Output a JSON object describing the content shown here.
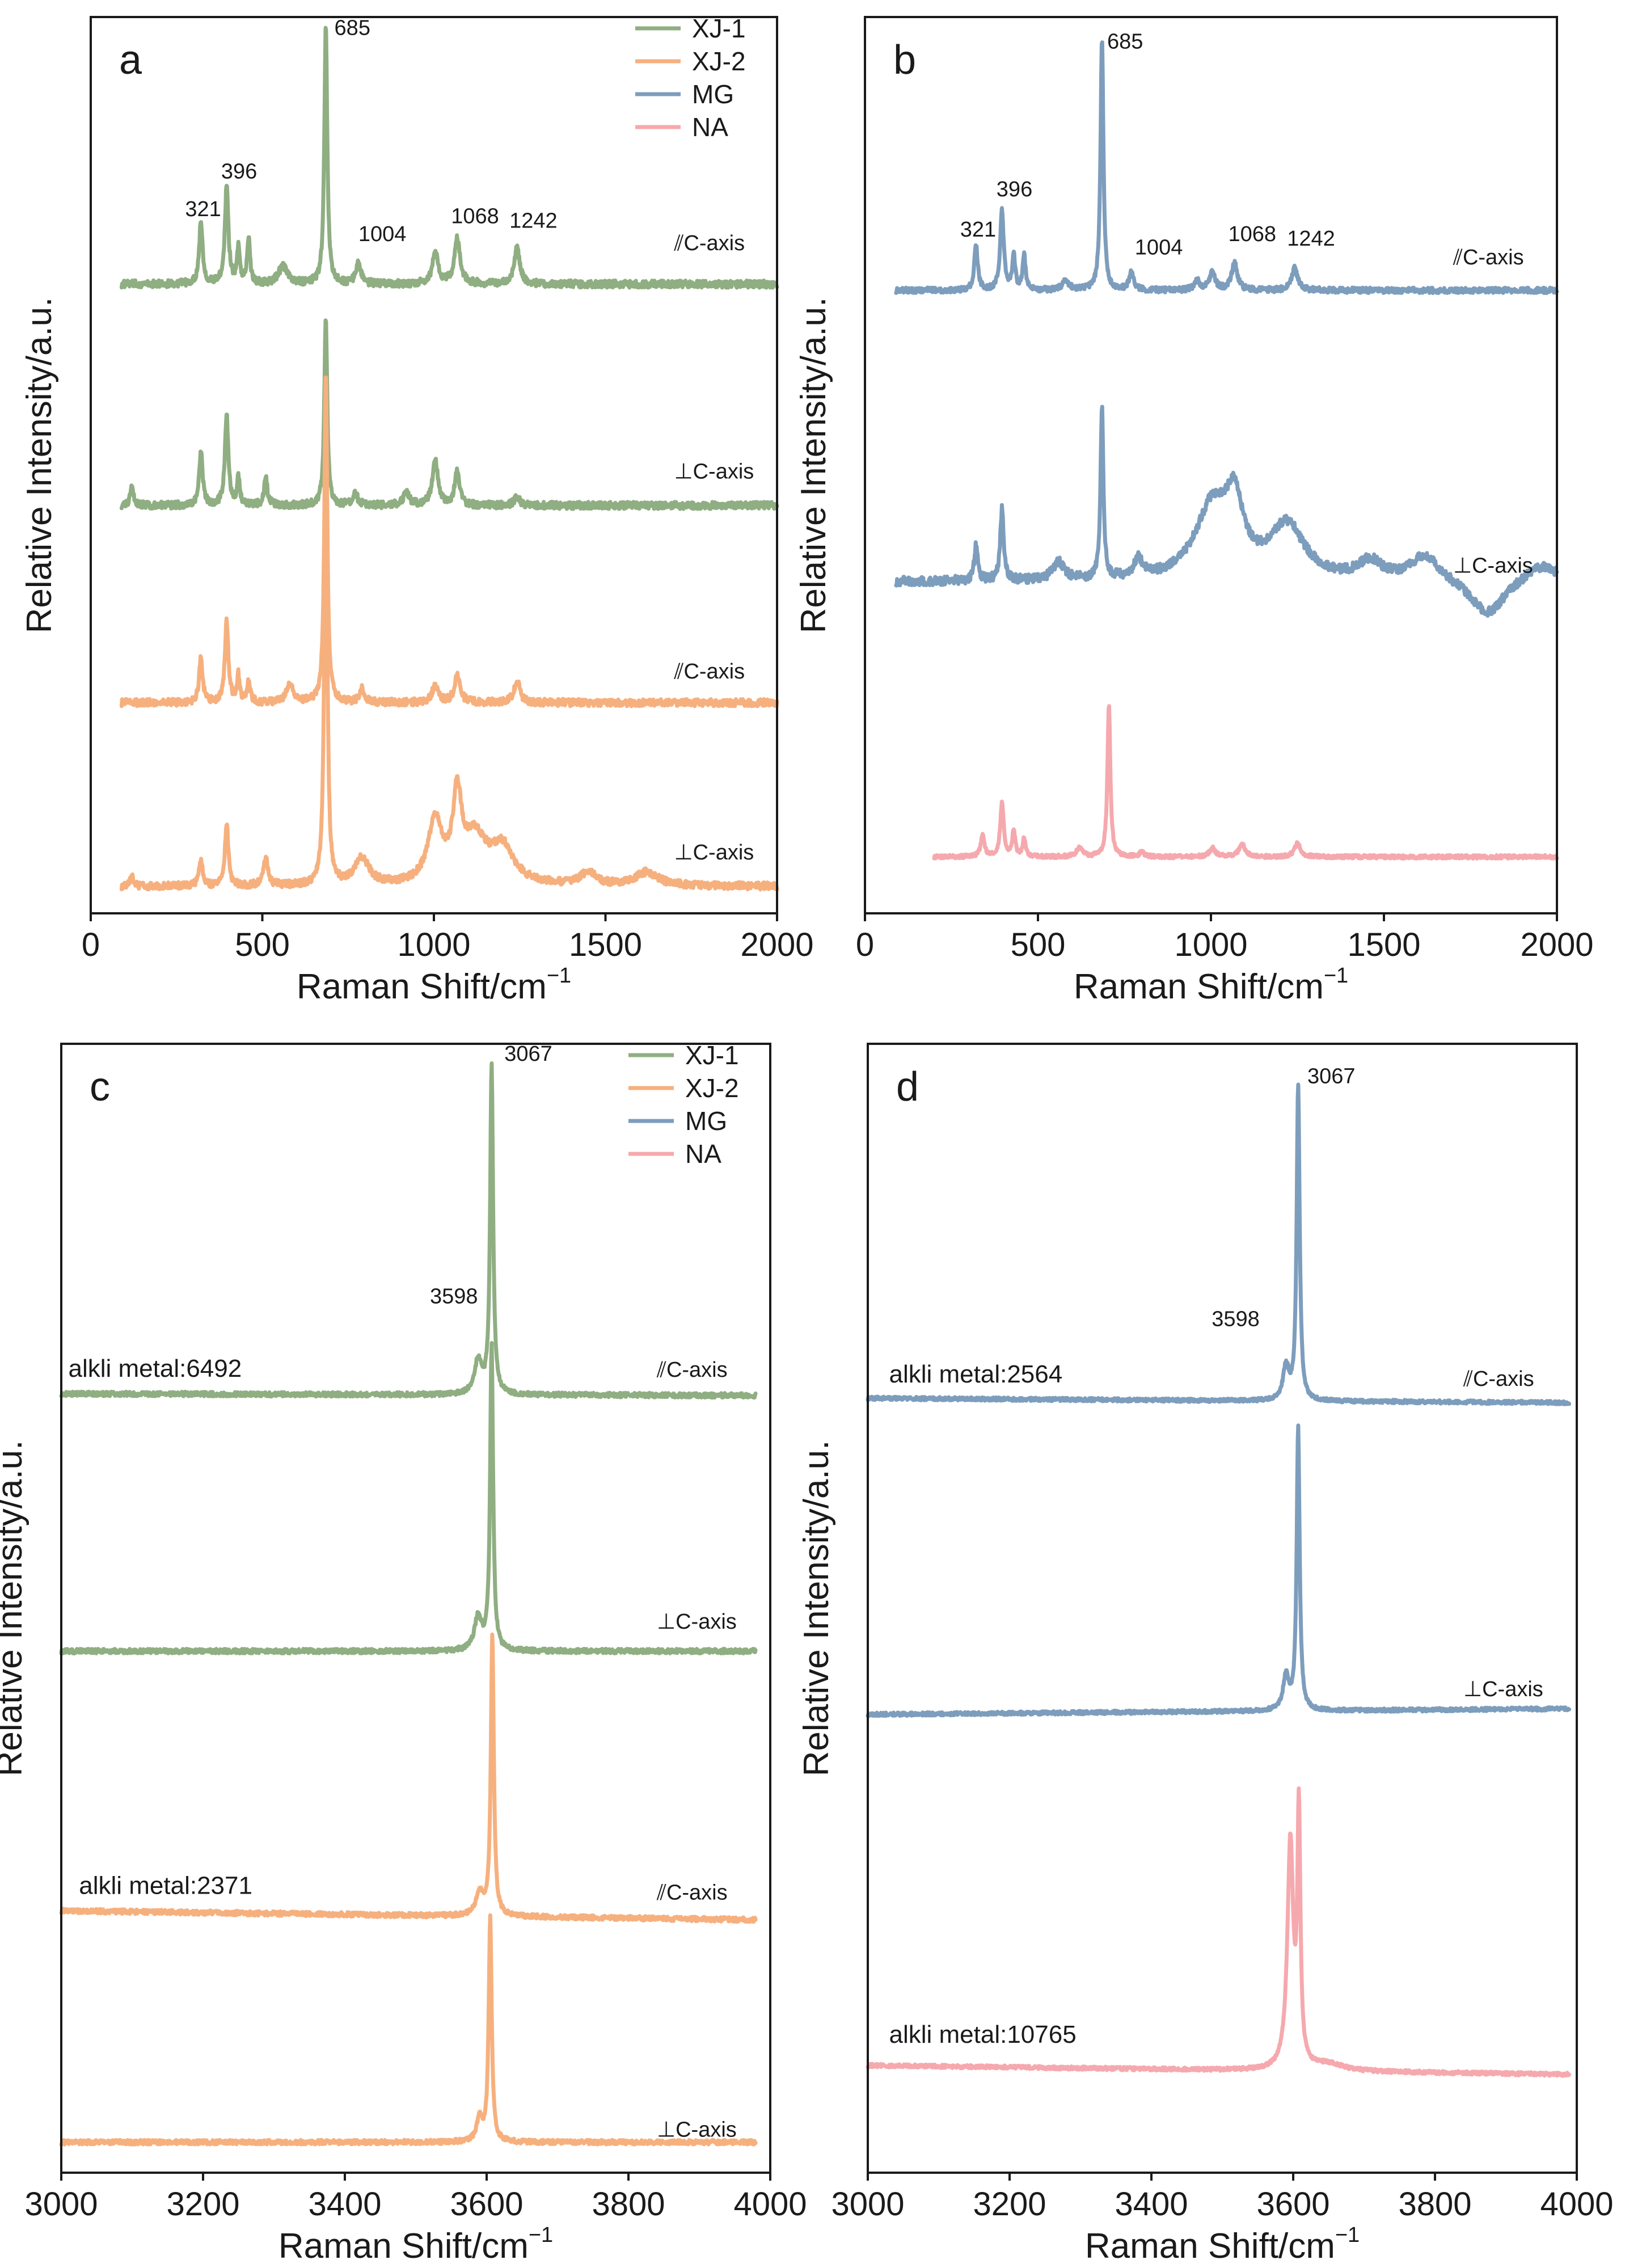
{
  "colors": {
    "XJ-1": "#8fae82",
    "XJ-2": "#f6b07e",
    "MG": "#7d9dbd",
    "NA": "#f5a9ae"
  },
  "chart_data": [
    {
      "id": "a",
      "type": "line",
      "panel_label": "a",
      "xlabel_main": "Raman Shift/cm",
      "xlabel_sup": "−1",
      "ylabel": "Relative Intensity/a.u.",
      "xlim": [
        0,
        2000
      ],
      "ylim": [
        0,
        1
      ],
      "xticks": [
        0,
        500,
        1000,
        1500,
        2000
      ],
      "xtick_labels": [
        "0",
        "500",
        "1000",
        "1500",
        "2000"
      ],
      "legend": {
        "position": "top-right",
        "entries": [
          "XJ-1",
          "XJ-2",
          "MG",
          "NA"
        ]
      },
      "peak_labels": [
        {
          "text": "685",
          "x": 710,
          "y": 0.98
        },
        {
          "text": "396",
          "x": 380,
          "y": 0.82
        },
        {
          "text": "321",
          "x": 275,
          "y": 0.778
        },
        {
          "text": "1004",
          "x": 780,
          "y": 0.75
        },
        {
          "text": "1068",
          "x": 1050,
          "y": 0.77
        },
        {
          "text": "1242",
          "x": 1220,
          "y": 0.765
        }
      ],
      "series": [
        {
          "name": "XJ-1",
          "orientation_label": "⫽C-axis",
          "label_pos": [
            1700,
            0.74
          ],
          "x_start": 90,
          "x_end": 2000,
          "baseline": 0.702,
          "slope": 0.0,
          "noise": 0.004,
          "peaks": [
            [
              321,
              0.07,
              6
            ],
            [
              396,
              0.11,
              6
            ],
            [
              430,
              0.04,
              5
            ],
            [
              460,
              0.05,
              5
            ],
            [
              560,
              0.02,
              15
            ],
            [
              685,
              0.29,
              5
            ],
            [
              780,
              0.025,
              8
            ],
            [
              1004,
              0.035,
              10
            ],
            [
              1068,
              0.05,
              10
            ],
            [
              1242,
              0.04,
              10
            ]
          ]
        },
        {
          "name": "XJ-1",
          "orientation_label": "⊥C-axis",
          "label_pos": [
            1700,
            0.485
          ],
          "x_start": 90,
          "x_end": 2000,
          "baseline": 0.455,
          "slope": 0.0,
          "noise": 0.004,
          "peaks": [
            [
              120,
              0.02,
              6
            ],
            [
              321,
              0.06,
              6
            ],
            [
              396,
              0.1,
              6
            ],
            [
              430,
              0.03,
              5
            ],
            [
              510,
              0.03,
              6
            ],
            [
              685,
              0.21,
              5
            ],
            [
              770,
              0.015,
              8
            ],
            [
              920,
              0.015,
              10
            ],
            [
              1004,
              0.05,
              10
            ],
            [
              1068,
              0.04,
              8
            ],
            [
              1242,
              0.01,
              10
            ]
          ]
        },
        {
          "name": "XJ-2",
          "orientation_label": "⫽C-axis",
          "label_pos": [
            1700,
            0.262
          ],
          "x_start": 90,
          "x_end": 2000,
          "baseline": 0.235,
          "slope": 0.0,
          "noise": 0.004,
          "peaks": [
            [
              321,
              0.05,
              6
            ],
            [
              396,
              0.09,
              6
            ],
            [
              430,
              0.03,
              5
            ],
            [
              460,
              0.025,
              5
            ],
            [
              580,
              0.02,
              12
            ],
            [
              685,
              0.37,
              5
            ],
            [
              790,
              0.015,
              8
            ],
            [
              1004,
              0.02,
              10
            ],
            [
              1068,
              0.03,
              10
            ],
            [
              1242,
              0.025,
              10
            ]
          ]
        },
        {
          "name": "XJ-2",
          "orientation_label": "⊥C-axis",
          "label_pos": [
            1700,
            0.06
          ],
          "x_start": 90,
          "x_end": 2000,
          "baseline": 0.03,
          "slope": 0.0,
          "noise": 0.004,
          "peaks": [
            [
              120,
              0.01,
              6
            ],
            [
              321,
              0.03,
              6
            ],
            [
              396,
              0.07,
              6
            ],
            [
              510,
              0.03,
              8
            ],
            [
              685,
              0.5,
              5
            ],
            [
              790,
              0.03,
              25
            ],
            [
              1004,
              0.07,
              25
            ],
            [
              1068,
              0.09,
              15
            ],
            [
              1120,
              0.05,
              40
            ],
            [
              1200,
              0.04,
              40
            ],
            [
              1450,
              0.015,
              25
            ],
            [
              1620,
              0.015,
              40
            ]
          ]
        }
      ]
    },
    {
      "id": "b",
      "type": "line",
      "panel_label": "b",
      "xlabel_main": "Raman Shift/cm",
      "xlabel_sup": "−1",
      "ylabel": "Relative Intensity/a.u.",
      "xlim": [
        0,
        2000
      ],
      "ylim": [
        0,
        1
      ],
      "xticks": [
        0,
        500,
        1000,
        1500,
        2000
      ],
      "xtick_labels": [
        "0",
        "500",
        "1000",
        "1500",
        "2000"
      ],
      "peak_labels": [
        {
          "text": "685",
          "x": 700,
          "y": 0.965
        },
        {
          "text": "396",
          "x": 380,
          "y": 0.8
        },
        {
          "text": "321",
          "x": 275,
          "y": 0.755
        },
        {
          "text": "1004",
          "x": 780,
          "y": 0.735
        },
        {
          "text": "1068",
          "x": 1050,
          "y": 0.75
        },
        {
          "text": "1242",
          "x": 1220,
          "y": 0.745
        }
      ],
      "series": [
        {
          "name": "MG",
          "orientation_label": "⫽C-axis",
          "label_pos": [
            1700,
            0.724
          ],
          "x_start": 90,
          "x_end": 2000,
          "baseline": 0.695,
          "slope": 0.0,
          "noise": 0.003,
          "peaks": [
            [
              321,
              0.05,
              6
            ],
            [
              396,
              0.09,
              6
            ],
            [
              430,
              0.04,
              5
            ],
            [
              460,
              0.04,
              5
            ],
            [
              580,
              0.01,
              12
            ],
            [
              685,
              0.28,
              5
            ],
            [
              770,
              0.02,
              8
            ],
            [
              960,
              0.01,
              10
            ],
            [
              1004,
              0.02,
              10
            ],
            [
              1068,
              0.03,
              10
            ],
            [
              1242,
              0.025,
              10
            ]
          ]
        },
        {
          "name": "MG",
          "orientation_label": "⊥C-axis",
          "label_pos": [
            1700,
            0.38
          ],
          "x_start": 90,
          "x_end": 2000,
          "baseline": 0.37,
          "slope": 0.0,
          "noise": 0.005,
          "peaks": [
            [
              321,
              0.04,
              6
            ],
            [
              396,
              0.08,
              6
            ],
            [
              560,
              0.02,
              20
            ],
            [
              685,
              0.19,
              5
            ],
            [
              790,
              0.02,
              15
            ],
            [
              1004,
              0.08,
              60
            ],
            [
              1068,
              0.07,
              30
            ],
            [
              1220,
              0.06,
              60
            ],
            [
              1460,
              0.02,
              40
            ],
            [
              1620,
              0.03,
              50
            ],
            [
              1950,
              0.02,
              60
            ],
            [
              1800,
              -0.04,
              60
            ]
          ]
        },
        {
          "name": "NA",
          "orientation_label": "",
          "label_pos": [
            0,
            0
          ],
          "x_start": 200,
          "x_end": 2000,
          "baseline": 0.063,
          "slope": 0.0,
          "noise": 0.002,
          "peaks": [
            [
              340,
              0.025,
              6
            ],
            [
              396,
              0.06,
              6
            ],
            [
              430,
              0.03,
              5
            ],
            [
              460,
              0.02,
              5
            ],
            [
              620,
              0.01,
              10
            ],
            [
              705,
              0.17,
              5
            ],
            [
              800,
              0.005,
              8
            ],
            [
              1004,
              0.01,
              10
            ],
            [
              1090,
              0.015,
              10
            ],
            [
              1250,
              0.015,
              10
            ]
          ]
        }
      ]
    },
    {
      "id": "c",
      "type": "line",
      "panel_label": "c",
      "xlabel_main": "Raman Shift/cm",
      "xlabel_sup": "−1",
      "ylabel": "Relative Intensity/a.u.",
      "xlim": [
        3000,
        4000
      ],
      "ylim": [
        0,
        1
      ],
      "xticks": [
        3000,
        3200,
        3400,
        3600,
        3800,
        4000
      ],
      "xtick_labels": [
        "3000",
        "3200",
        "3400",
        "3600",
        "3800",
        "4000"
      ],
      "legend": {
        "position": "top-right",
        "entries": [
          "XJ-1",
          "XJ-2",
          "MG",
          "NA"
        ]
      },
      "peak_labels": [
        {
          "text": "3067",
          "x": 3625,
          "y": 0.985,
          "size": "large"
        },
        {
          "text": "3598",
          "x": 3520,
          "y": 0.77,
          "size": "large"
        }
      ],
      "alkali_labels": [
        {
          "text": "alkli metal:6492",
          "x": 3010,
          "y": 0.705
        },
        {
          "text": "alkli metal:2371",
          "x": 3025,
          "y": 0.247
        }
      ],
      "series": [
        {
          "name": "XJ-1",
          "orientation_label": "⫽C-axis",
          "label_pos": [
            3840,
            0.705
          ],
          "x_start": 3000,
          "x_end": 3980,
          "baseline": 0.69,
          "slope": -0.0015,
          "noise": 0.002,
          "peaks": [
            [
              3588,
              0.03,
              6
            ],
            [
              3607,
              0.29,
              2.5
            ]
          ]
        },
        {
          "name": "XJ-1",
          "orientation_label": "⊥C-axis",
          "label_pos": [
            3840,
            0.482
          ],
          "x_start": 3000,
          "x_end": 3980,
          "baseline": 0.462,
          "slope": 0.0,
          "noise": 0.002,
          "peaks": [
            [
              3588,
              0.03,
              6
            ],
            [
              3607,
              0.27,
              2.5
            ]
          ]
        },
        {
          "name": "XJ-2",
          "orientation_label": "⫽C-axis",
          "label_pos": [
            3840,
            0.242
          ],
          "x_start": 3000,
          "x_end": 3980,
          "baseline": 0.232,
          "slope": -0.008,
          "noise": 0.002,
          "peaks": [
            [
              3590,
              0.02,
              6
            ],
            [
              3608,
              0.25,
              2.5
            ]
          ]
        },
        {
          "name": "XJ-2",
          "orientation_label": "⊥C-axis",
          "label_pos": [
            3840,
            0.032
          ],
          "x_start": 3000,
          "x_end": 3980,
          "baseline": 0.027,
          "slope": 0.0,
          "noise": 0.002,
          "peaks": [
            [
              3590,
              0.02,
              5
            ],
            [
              3605,
              0.2,
              2.5
            ]
          ]
        }
      ]
    },
    {
      "id": "d",
      "type": "line",
      "panel_label": "d",
      "xlabel_main": "Raman Shift/cm",
      "xlabel_sup": "−1",
      "ylabel": "Relative Intensity/a.u.",
      "xlim": [
        3000,
        4000
      ],
      "ylim": [
        0,
        1
      ],
      "xticks": [
        3000,
        3200,
        3400,
        3600,
        3800,
        4000
      ],
      "xtick_labels": [
        "3000",
        "3200",
        "3400",
        "3600",
        "3800",
        "4000"
      ],
      "peak_labels": [
        {
          "text": "3067",
          "x": 3620,
          "y": 0.965,
          "size": "large"
        },
        {
          "text": "3598",
          "x": 3485,
          "y": 0.75,
          "size": "large"
        }
      ],
      "alkali_labels": [
        {
          "text": "alkli metal:2564",
          "x": 3030,
          "y": 0.7
        },
        {
          "text": "alkli metal:10765",
          "x": 3030,
          "y": 0.115
        }
      ],
      "series": [
        {
          "name": "MG",
          "orientation_label": "⫽C-axis",
          "label_pos": [
            3840,
            0.697
          ],
          "x_start": 3000,
          "x_end": 3990,
          "baseline": 0.686,
          "slope": -0.004,
          "noise": 0.0015,
          "peaks": [
            [
              3590,
              0.03,
              5
            ],
            [
              3607,
              0.28,
              2.5
            ]
          ]
        },
        {
          "name": "MG",
          "orientation_label": "⊥C-axis",
          "label_pos": [
            3840,
            0.422
          ],
          "x_start": 3000,
          "x_end": 3990,
          "baseline": 0.406,
          "slope": 0.005,
          "noise": 0.0015,
          "peaks": [
            [
              3590,
              0.03,
              5
            ],
            [
              3607,
              0.25,
              2.5
            ]
          ]
        },
        {
          "name": "NA",
          "orientation_label": "",
          "label_pos": [
            0,
            0
          ],
          "x_start": 3000,
          "x_end": 3990,
          "baseline": 0.095,
          "slope": -0.008,
          "noise": 0.0015,
          "peaks": [
            [
              3596,
              0.2,
              5
            ],
            [
              3608,
              0.22,
              2.5
            ],
            [
              3650,
              0.006,
              25
            ]
          ]
        }
      ]
    }
  ]
}
